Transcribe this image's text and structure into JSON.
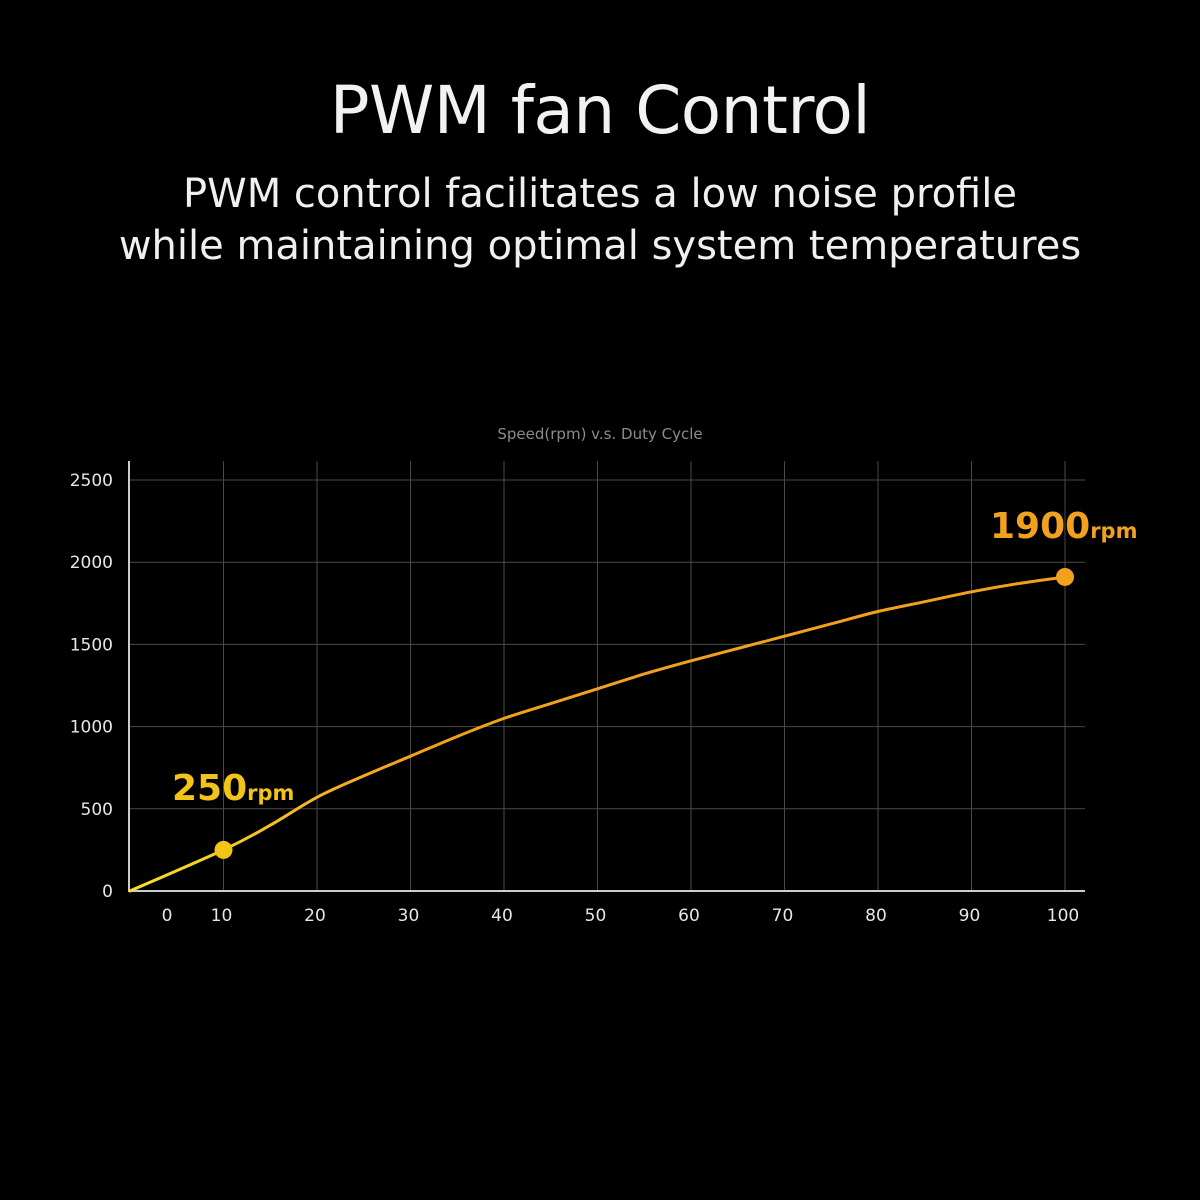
{
  "header": {
    "title": "PWM fan Control",
    "subtitle_line1": "PWM control facilitates a low noise profile",
    "subtitle_line2": "while maintaining optimal system temperatures"
  },
  "chart_data": {
    "type": "line",
    "title": "Speed(rpm)  v.s.  Duty Cycle",
    "xlabel": "",
    "ylabel": "",
    "x_ticks": [
      "0",
      "10",
      "20",
      "30",
      "40",
      "50",
      "60",
      "70",
      "80",
      "90",
      "100"
    ],
    "y_ticks": [
      "0",
      "500",
      "1000",
      "1500",
      "2000",
      "2500"
    ],
    "xlim": [
      0,
      100
    ],
    "ylim": [
      0,
      2500
    ],
    "grid": true,
    "series": [
      {
        "x": [
          0,
          10,
          15,
          20,
          25,
          30,
          35,
          40,
          45,
          50,
          55,
          60,
          65,
          70,
          75,
          80,
          85,
          90,
          95,
          100
        ],
        "y": [
          0,
          250,
          400,
          570,
          700,
          820,
          940,
          1050,
          1140,
          1230,
          1320,
          1400,
          1475,
          1550,
          1625,
          1700,
          1760,
          1820,
          1870,
          1910
        ]
      }
    ],
    "line_colors": [
      "#f7df2a",
      "#f2a11f"
    ],
    "annotations": [
      {
        "x": 10,
        "y": 250,
        "value": "250",
        "unit": "rpm",
        "color": "#f2c417"
      },
      {
        "x": 100,
        "y": 1910,
        "value": "1900",
        "unit": "rpm",
        "color": "#f2a11f"
      }
    ],
    "colors": {
      "grid": "#4a4a4a",
      "axis": "#cccccc",
      "tick_text": "#e6e6e6"
    }
  }
}
